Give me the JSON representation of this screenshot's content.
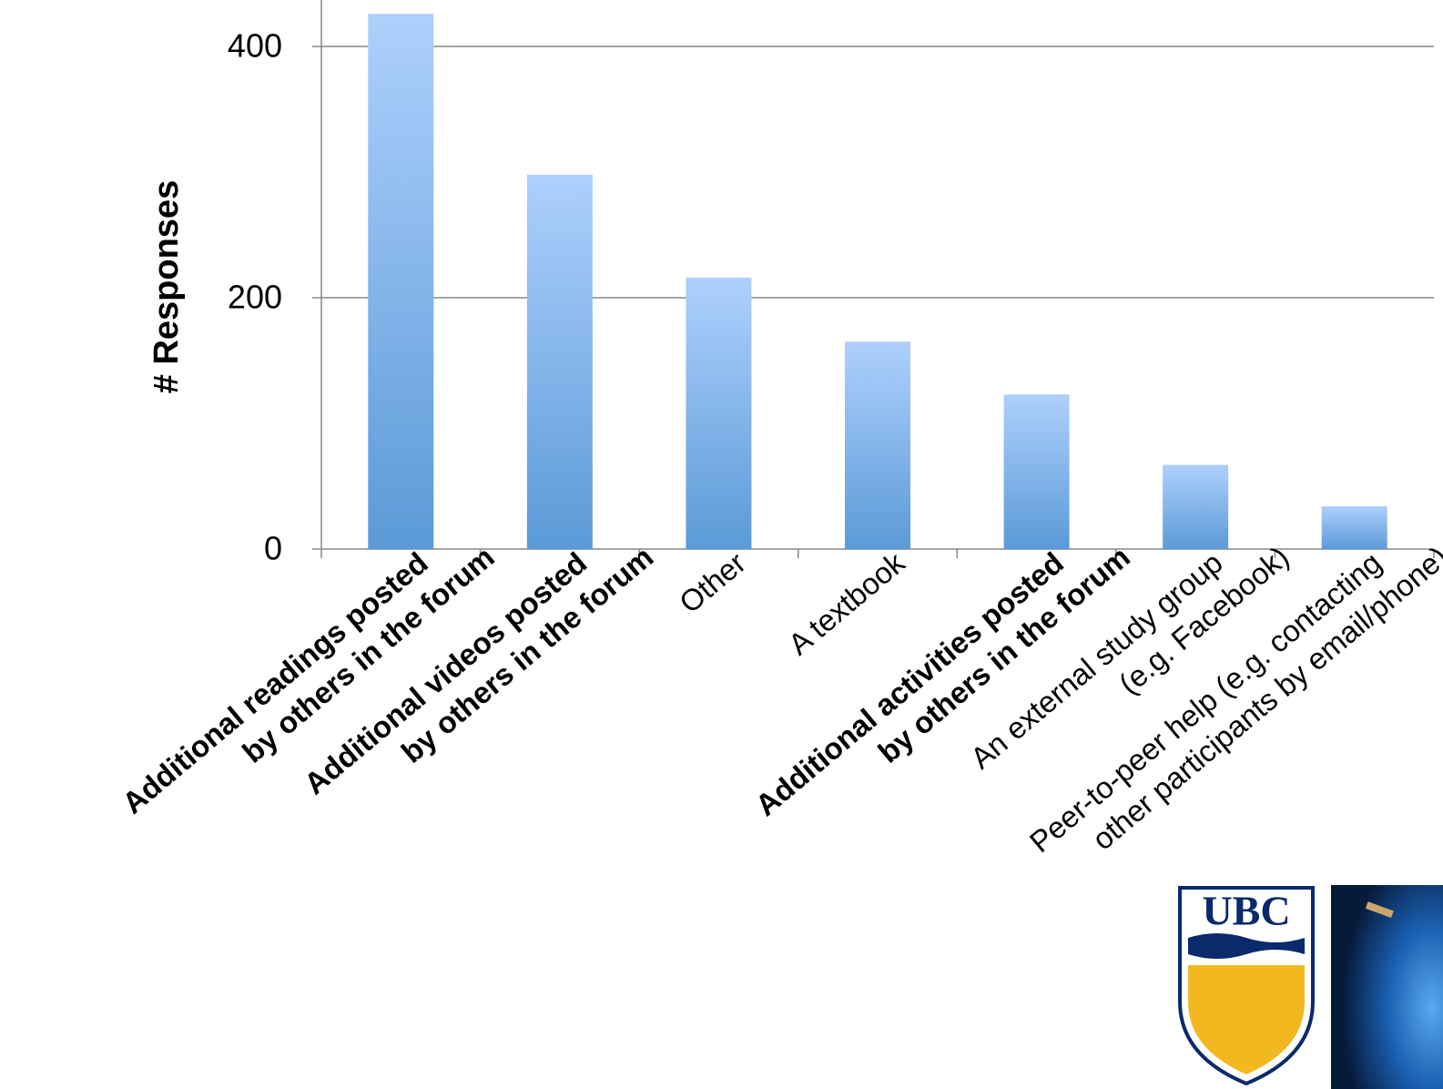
{
  "chart_data": {
    "type": "bar",
    "y_label": "# Responses",
    "categories": [
      [
        "Additional readings posted",
        "by others in the forum"
      ],
      [
        "Additional videos posted",
        "by others in the forum"
      ],
      [
        "Other"
      ],
      [
        "A textbook"
      ],
      [
        "Additional activities posted",
        "by others in the forum"
      ],
      [
        "An external study group",
        "(e.g. Facebook)"
      ],
      [
        "Peer-to-peer help (e.g. contacting",
        "other participants by email/phone)"
      ]
    ],
    "bold": [
      true,
      true,
      false,
      false,
      true,
      false,
      false
    ],
    "values": [
      426,
      298,
      216,
      165,
      123,
      67,
      34
    ],
    "color": "#5b9ad8",
    "ylim": [
      0,
      437
    ],
    "yticks": [
      0,
      200,
      400
    ],
    "grid": true
  },
  "logo": {
    "text": "UBC"
  }
}
